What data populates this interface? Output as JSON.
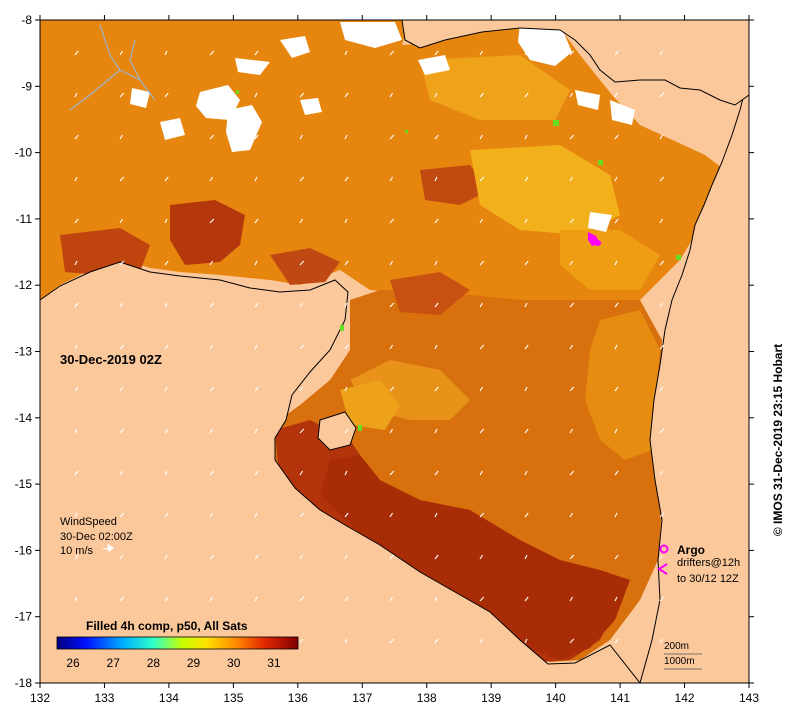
{
  "map": {
    "date_label": "30-Dec-2019 02Z",
    "credit": "© IMOS 31-Dec-2019 23:15 Hobart",
    "lon_ticks": [
      "132",
      "133",
      "134",
      "135",
      "136",
      "137",
      "138",
      "139",
      "140",
      "141",
      "142",
      "143"
    ],
    "lat_ticks": [
      "-8",
      "-9",
      "-10",
      "-11",
      "-12",
      "-13",
      "-14",
      "-15",
      "-16",
      "-17",
      "-18"
    ],
    "colors": {
      "land": "#fbc89b",
      "cloud": "#ffffff",
      "coast": "#000000",
      "river": "#9fb3c8",
      "wind_arrow": "#ffffff",
      "argo": "#ff00ff",
      "drifter": "#ff00ff"
    }
  },
  "wind_legend": {
    "title": "WindSpeed",
    "time": "30-Dec 02:00Z",
    "reference": "10 m/s"
  },
  "markers_legend": {
    "argo": "Argo",
    "drifters": "drifters@12h",
    "drifter_range": "to 30/12 12Z"
  },
  "depth_legend": {
    "contour1": "200m",
    "contour2": "1000m"
  },
  "colorbar": {
    "title": "Filled 4h comp, p50, All Sats",
    "ticks": [
      "26",
      "27",
      "28",
      "29",
      "30",
      "31"
    ],
    "min": 25.6,
    "max": 31.6
  }
}
